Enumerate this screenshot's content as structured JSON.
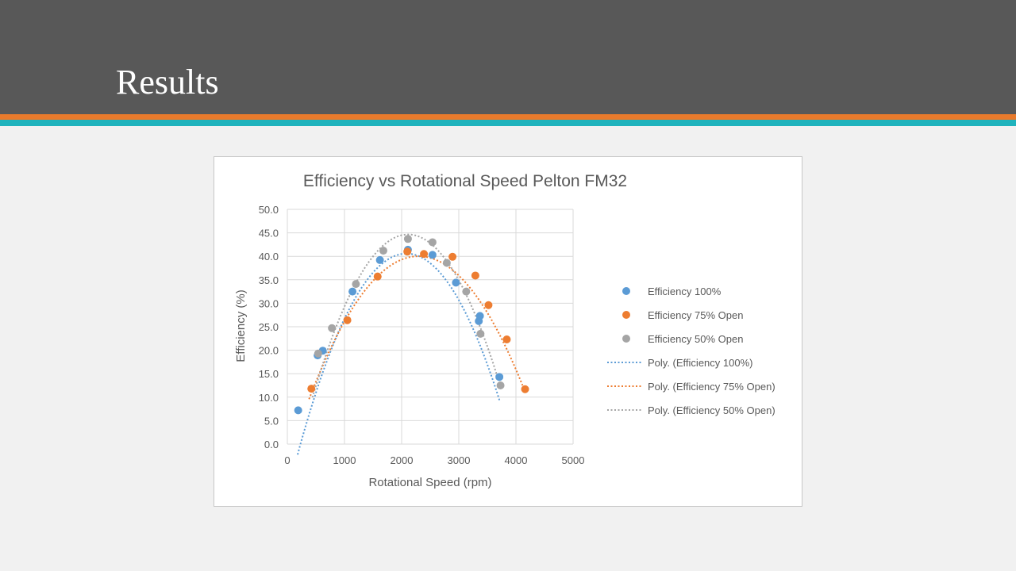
{
  "slide": {
    "title": "Results"
  },
  "colors": {
    "header": "#585858",
    "stripe_orange": "#e87a2c",
    "stripe_teal": "#1fb3bd",
    "series_100": "#5b9bd5",
    "series_75": "#ed7d31",
    "series_50": "#a5a5a5"
  },
  "chart_data": {
    "type": "scatter",
    "title": "Efficiency vs Rotational Speed Pelton FM32",
    "xlabel": "Rotational Speed (rpm)",
    "ylabel": "Efficiency (%)",
    "xlim": [
      0,
      5000
    ],
    "ylim": [
      0,
      50
    ],
    "xticks": [
      "0",
      "1000",
      "2000",
      "3000",
      "4000",
      "5000"
    ],
    "yticks": [
      "0.0",
      "5.0",
      "10.0",
      "15.0",
      "20.0",
      "25.0",
      "30.0",
      "35.0",
      "40.0",
      "45.0",
      "50.0"
    ],
    "grid": true,
    "legend_position": "right",
    "series": [
      {
        "name": "Efficiency 100%",
        "color": "#5b9bd5",
        "x": [
          190,
          530,
          620,
          1140,
          1620,
          2110,
          2540,
          2950,
          3350,
          3370,
          3710
        ],
        "y": [
          7.2,
          18.9,
          19.9,
          32.5,
          39.2,
          41.4,
          40.3,
          34.4,
          26.2,
          27.3,
          14.3
        ],
        "trend": {
          "name": "Poly. (Efficiency 100%)",
          "coef": [
            -10.7,
            0.0492,
            -1.18e-05
          ],
          "range": [
            180,
            3720
          ]
        }
      },
      {
        "name": "Efficiency 75% Open",
        "color": "#ed7d31",
        "x": [
          420,
          1050,
          1580,
          2100,
          2390,
          2890,
          3290,
          3520,
          3840,
          4160
        ],
        "y": [
          11.8,
          26.4,
          35.7,
          41.0,
          40.5,
          39.9,
          35.9,
          29.6,
          22.3,
          11.7
        ],
        "trend": {
          "name": "Poly. (Efficiency 75% Open)",
          "coef": [
            -3.7,
            0.0381,
            -8.3e-06
          ],
          "range": [
            380,
            4160
          ]
        }
      },
      {
        "name": "Efficiency 50% Open",
        "color": "#a5a5a5",
        "x": [
          540,
          780,
          1200,
          1680,
          2110,
          2540,
          2790,
          3130,
          3380,
          3730
        ],
        "y": [
          19.3,
          24.7,
          34.1,
          41.2,
          43.7,
          43.0,
          38.6,
          32.5,
          23.5,
          12.5
        ],
        "trend": {
          "name": "Poly. (Efficiency 50% Open)",
          "coef": [
            -10.7,
            0.0524,
            -1.24e-05
          ],
          "range": [
            440,
            3730
          ]
        }
      }
    ]
  }
}
